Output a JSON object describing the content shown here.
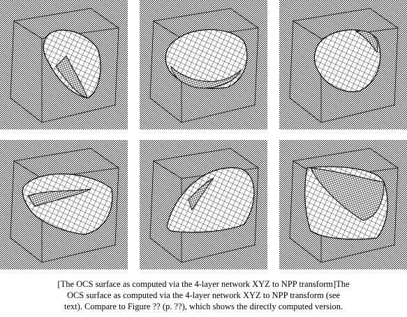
{
  "caption": {
    "lines": [
      "[The OCS surface as computed via the 4-layer network XYZ to NPP transform]The",
      "OCS surface as computed via the 4-layer network XYZ to NPP transform (see",
      "text). Compare to Figure ?? (p. ??), which shows the directly computed version."
    ]
  }
}
